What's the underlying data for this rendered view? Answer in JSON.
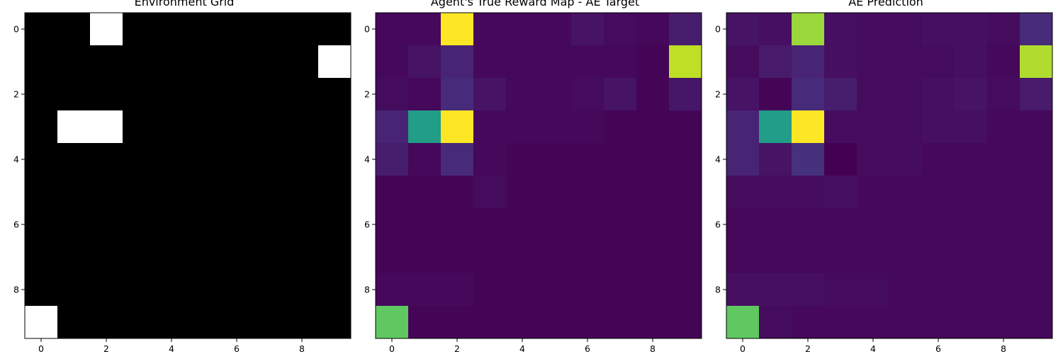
{
  "chart_data": [
    {
      "type": "heatmap",
      "title": "Environment Grid",
      "colormap": "gray",
      "vmin": 0,
      "vmax": 1,
      "xticks": [
        0,
        2,
        4,
        6,
        8
      ],
      "yticks": [
        0,
        2,
        4,
        6,
        8
      ],
      "values": [
        [
          0,
          0,
          1,
          0,
          0,
          0,
          0,
          0,
          0,
          0
        ],
        [
          0,
          0,
          0,
          0,
          0,
          0,
          0,
          0,
          0,
          1
        ],
        [
          0,
          0,
          0,
          0,
          0,
          0,
          0,
          0,
          0,
          0
        ],
        [
          0,
          1,
          1,
          0,
          0,
          0,
          0,
          0,
          0,
          0
        ],
        [
          0,
          0,
          0,
          0,
          0,
          0,
          0,
          0,
          0,
          0
        ],
        [
          0,
          0,
          0,
          0,
          0,
          0,
          0,
          0,
          0,
          0
        ],
        [
          0,
          0,
          0,
          0,
          0,
          0,
          0,
          0,
          0,
          0
        ],
        [
          0,
          0,
          0,
          0,
          0,
          0,
          0,
          0,
          0,
          0
        ],
        [
          0,
          0,
          0,
          0,
          0,
          0,
          0,
          0,
          0,
          0
        ],
        [
          1,
          0,
          0,
          0,
          0,
          0,
          0,
          0,
          0,
          0
        ]
      ]
    },
    {
      "type": "heatmap",
      "title": "Agent's True Reward Map - AE Target",
      "colormap": "viridis",
      "vmin": 0,
      "vmax": 1,
      "xticks": [
        0,
        2,
        4,
        6,
        8
      ],
      "yticks": [
        0,
        2,
        4,
        6,
        8
      ],
      "values": [
        [
          0.02,
          0.02,
          1.0,
          0.02,
          0.02,
          0.02,
          0.05,
          0.03,
          0.02,
          0.08
        ],
        [
          0.02,
          0.05,
          0.1,
          0.02,
          0.02,
          0.02,
          0.02,
          0.02,
          0.01,
          0.9
        ],
        [
          0.03,
          0.02,
          0.12,
          0.05,
          0.02,
          0.02,
          0.03,
          0.05,
          0.01,
          0.06
        ],
        [
          0.1,
          0.55,
          1.0,
          0.02,
          0.02,
          0.02,
          0.02,
          0.01,
          0.01,
          0.01
        ],
        [
          0.08,
          0.02,
          0.12,
          0.02,
          0.01,
          0.01,
          0.01,
          0.01,
          0.01,
          0.01
        ],
        [
          0.01,
          0.01,
          0.01,
          0.03,
          0.01,
          0.01,
          0.01,
          0.01,
          0.01,
          0.01
        ],
        [
          0.01,
          0.01,
          0.01,
          0.01,
          0.01,
          0.01,
          0.01,
          0.01,
          0.01,
          0.01
        ],
        [
          0.01,
          0.01,
          0.01,
          0.01,
          0.01,
          0.01,
          0.01,
          0.01,
          0.01,
          0.01
        ],
        [
          0.02,
          0.02,
          0.02,
          0.01,
          0.01,
          0.01,
          0.01,
          0.01,
          0.01,
          0.01
        ],
        [
          0.75,
          0.01,
          0.01,
          0.01,
          0.01,
          0.01,
          0.01,
          0.01,
          0.01,
          0.01
        ]
      ]
    },
    {
      "type": "heatmap",
      "title": "AE Prediction",
      "colormap": "viridis",
      "vmin": 0,
      "vmax": 1,
      "xticks": [
        0,
        2,
        4,
        6,
        8
      ],
      "yticks": [
        0,
        2,
        4,
        6,
        8
      ],
      "values": [
        [
          0.05,
          0.04,
          0.85,
          0.04,
          0.03,
          0.03,
          0.04,
          0.04,
          0.03,
          0.12
        ],
        [
          0.03,
          0.07,
          0.1,
          0.04,
          0.03,
          0.03,
          0.03,
          0.04,
          0.02,
          0.88
        ],
        [
          0.05,
          0.01,
          0.12,
          0.08,
          0.03,
          0.03,
          0.04,
          0.05,
          0.03,
          0.07
        ],
        [
          0.1,
          0.55,
          1.0,
          0.03,
          0.03,
          0.03,
          0.04,
          0.04,
          0.02,
          0.02
        ],
        [
          0.1,
          0.05,
          0.14,
          0.0,
          0.03,
          0.03,
          0.02,
          0.02,
          0.02,
          0.02
        ],
        [
          0.03,
          0.03,
          0.03,
          0.04,
          0.02,
          0.02,
          0.02,
          0.02,
          0.02,
          0.02
        ],
        [
          0.02,
          0.02,
          0.02,
          0.02,
          0.02,
          0.02,
          0.02,
          0.02,
          0.02,
          0.02
        ],
        [
          0.02,
          0.02,
          0.02,
          0.02,
          0.02,
          0.02,
          0.02,
          0.02,
          0.02,
          0.02
        ],
        [
          0.04,
          0.04,
          0.04,
          0.03,
          0.03,
          0.02,
          0.02,
          0.02,
          0.02,
          0.02
        ],
        [
          0.75,
          0.03,
          0.02,
          0.02,
          0.02,
          0.02,
          0.02,
          0.02,
          0.02,
          0.02
        ]
      ]
    }
  ]
}
